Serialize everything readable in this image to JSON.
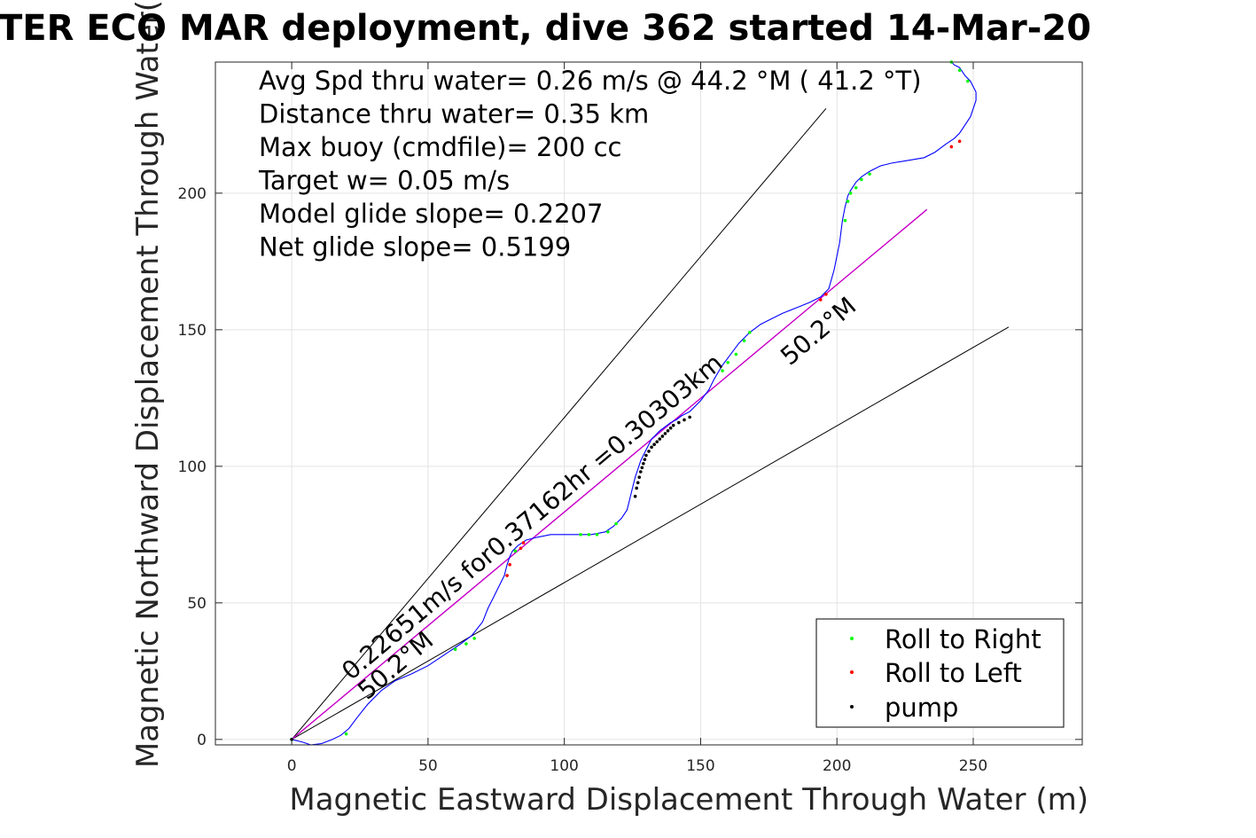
{
  "chart_data": {
    "type": "line",
    "title": "TER ECO MAR deployment, dive 362 started 14-Mar-20",
    "xlabel": "Magnetic Eastward Displacement Through Water (m)",
    "ylabel": "Magnetic Northward Displacement Through Water(",
    "xlim": [
      -28,
      290
    ],
    "ylim": [
      -2,
      248
    ],
    "xticks": [
      0,
      50,
      100,
      150,
      200,
      250
    ],
    "yticks": [
      0,
      50,
      100,
      150,
      200
    ],
    "grid": true,
    "stats": [
      "Avg Spd thru water=  0.26 m/s @  44.2 °M ( 41.2 °T)",
      "Distance thru water=  0.35 km",
      "Max buoy (cmdfile)= 200 cc",
      "Target w= 0.05 m/s",
      "Model glide slope= 0.2207",
      "Net glide slope= 0.5199"
    ],
    "annotations": {
      "speed": "0.22651m/s for0.37162hr =0.30303km",
      "heading_center": "50.2°M",
      "heading_lower": "50.2°M"
    },
    "legend": {
      "position": "bottom-right",
      "entries": [
        {
          "label": "Roll to Right",
          "color": "#00ff00"
        },
        {
          "label": "Roll to Left",
          "color": "#ff0000"
        },
        {
          "label": "pump",
          "color": "#000000"
        }
      ]
    },
    "lines": [
      {
        "kind": "cone",
        "color": "#000000",
        "x": [
          0,
          196
        ],
        "y": [
          0,
          231
        ]
      },
      {
        "kind": "cone",
        "color": "#000000",
        "x": [
          0,
          263
        ],
        "y": [
          0,
          151
        ]
      },
      {
        "kind": "heading",
        "color": "#000000",
        "x": [
          0,
          233
        ],
        "y": [
          0,
          194
        ]
      },
      {
        "kind": "net",
        "color": "#cc00cc",
        "x": [
          0,
          233
        ],
        "y": [
          0,
          194
        ]
      }
    ],
    "track": {
      "color": "#0000ff",
      "x": [
        0,
        4,
        7,
        11,
        15,
        18,
        21,
        24,
        28,
        33,
        38,
        44,
        50,
        56,
        62,
        66,
        70,
        72,
        74,
        76,
        78,
        79,
        80,
        81,
        83,
        86,
        90,
        95,
        100,
        105,
        110,
        115,
        118,
        121,
        123,
        124,
        125,
        126,
        127,
        128,
        129,
        130,
        131,
        132,
        133,
        135,
        137,
        139,
        141,
        143,
        146,
        150,
        153,
        155,
        158,
        161,
        164,
        168,
        172,
        176,
        180,
        185,
        190,
        194,
        197,
        199,
        201,
        202,
        203,
        203.5,
        204,
        205,
        207,
        209,
        212,
        216,
        220,
        226,
        232,
        236,
        240,
        243,
        245,
        247,
        249,
        250,
        251,
        251,
        250,
        249,
        247,
        246,
        245,
        243,
        242
      ],
      "y": [
        0,
        -1,
        -2,
        -1.5,
        0,
        1.5,
        4,
        8,
        13,
        18,
        21.5,
        24,
        27,
        31,
        35,
        38,
        43,
        48,
        52,
        56,
        60,
        64,
        67,
        69,
        71,
        73,
        74,
        75,
        75,
        75,
        75,
        76,
        78,
        81,
        84,
        88,
        92,
        96,
        99,
        102,
        104,
        106,
        108,
        110,
        111,
        113,
        114.5,
        116,
        117,
        118.5,
        120,
        124,
        128,
        132,
        137,
        141,
        145,
        149,
        152,
        154,
        156,
        158,
        160,
        162,
        165,
        172,
        182,
        190,
        195,
        197,
        199,
        201,
        204,
        206,
        208,
        210,
        211,
        212,
        213,
        215,
        218,
        220,
        222,
        225,
        228,
        231,
        234,
        237,
        239,
        241,
        243,
        244.5,
        246,
        247,
        248
      ]
    },
    "markers": {
      "roll_right": {
        "color": "#00ff00",
        "x": [
          0,
          20,
          60,
          64,
          67,
          82,
          106,
          109,
          112,
          116,
          119,
          158,
          160,
          163,
          166,
          168,
          203,
          204,
          205,
          207,
          209,
          212,
          242,
          245,
          248
        ],
        "y": [
          0,
          2,
          33,
          35,
          37,
          69,
          75,
          75,
          75,
          76,
          79,
          135,
          138,
          141,
          146,
          149,
          190,
          197,
          200,
          202,
          205,
          207,
          248,
          245,
          241
        ]
      },
      "roll_left": {
        "color": "#ff0000",
        "x": [
          79,
          80,
          84,
          85,
          194,
          196,
          242,
          245
        ],
        "y": [
          60,
          64,
          70,
          72,
          161,
          163,
          217,
          219
        ]
      },
      "pump": {
        "color": "#000000",
        "x": [
          0,
          126,
          126.5,
          127,
          127.5,
          128,
          128.5,
          129,
          129.5,
          130,
          131,
          132,
          133,
          134,
          135,
          136,
          137,
          138,
          139,
          140,
          142,
          144,
          146
        ],
        "y": [
          0,
          89,
          92,
          94,
          96,
          98,
          99.5,
          101,
          102.5,
          104,
          105.5,
          107,
          108,
          109,
          110,
          111,
          112,
          113,
          114,
          115,
          116,
          117,
          118
        ]
      }
    }
  }
}
